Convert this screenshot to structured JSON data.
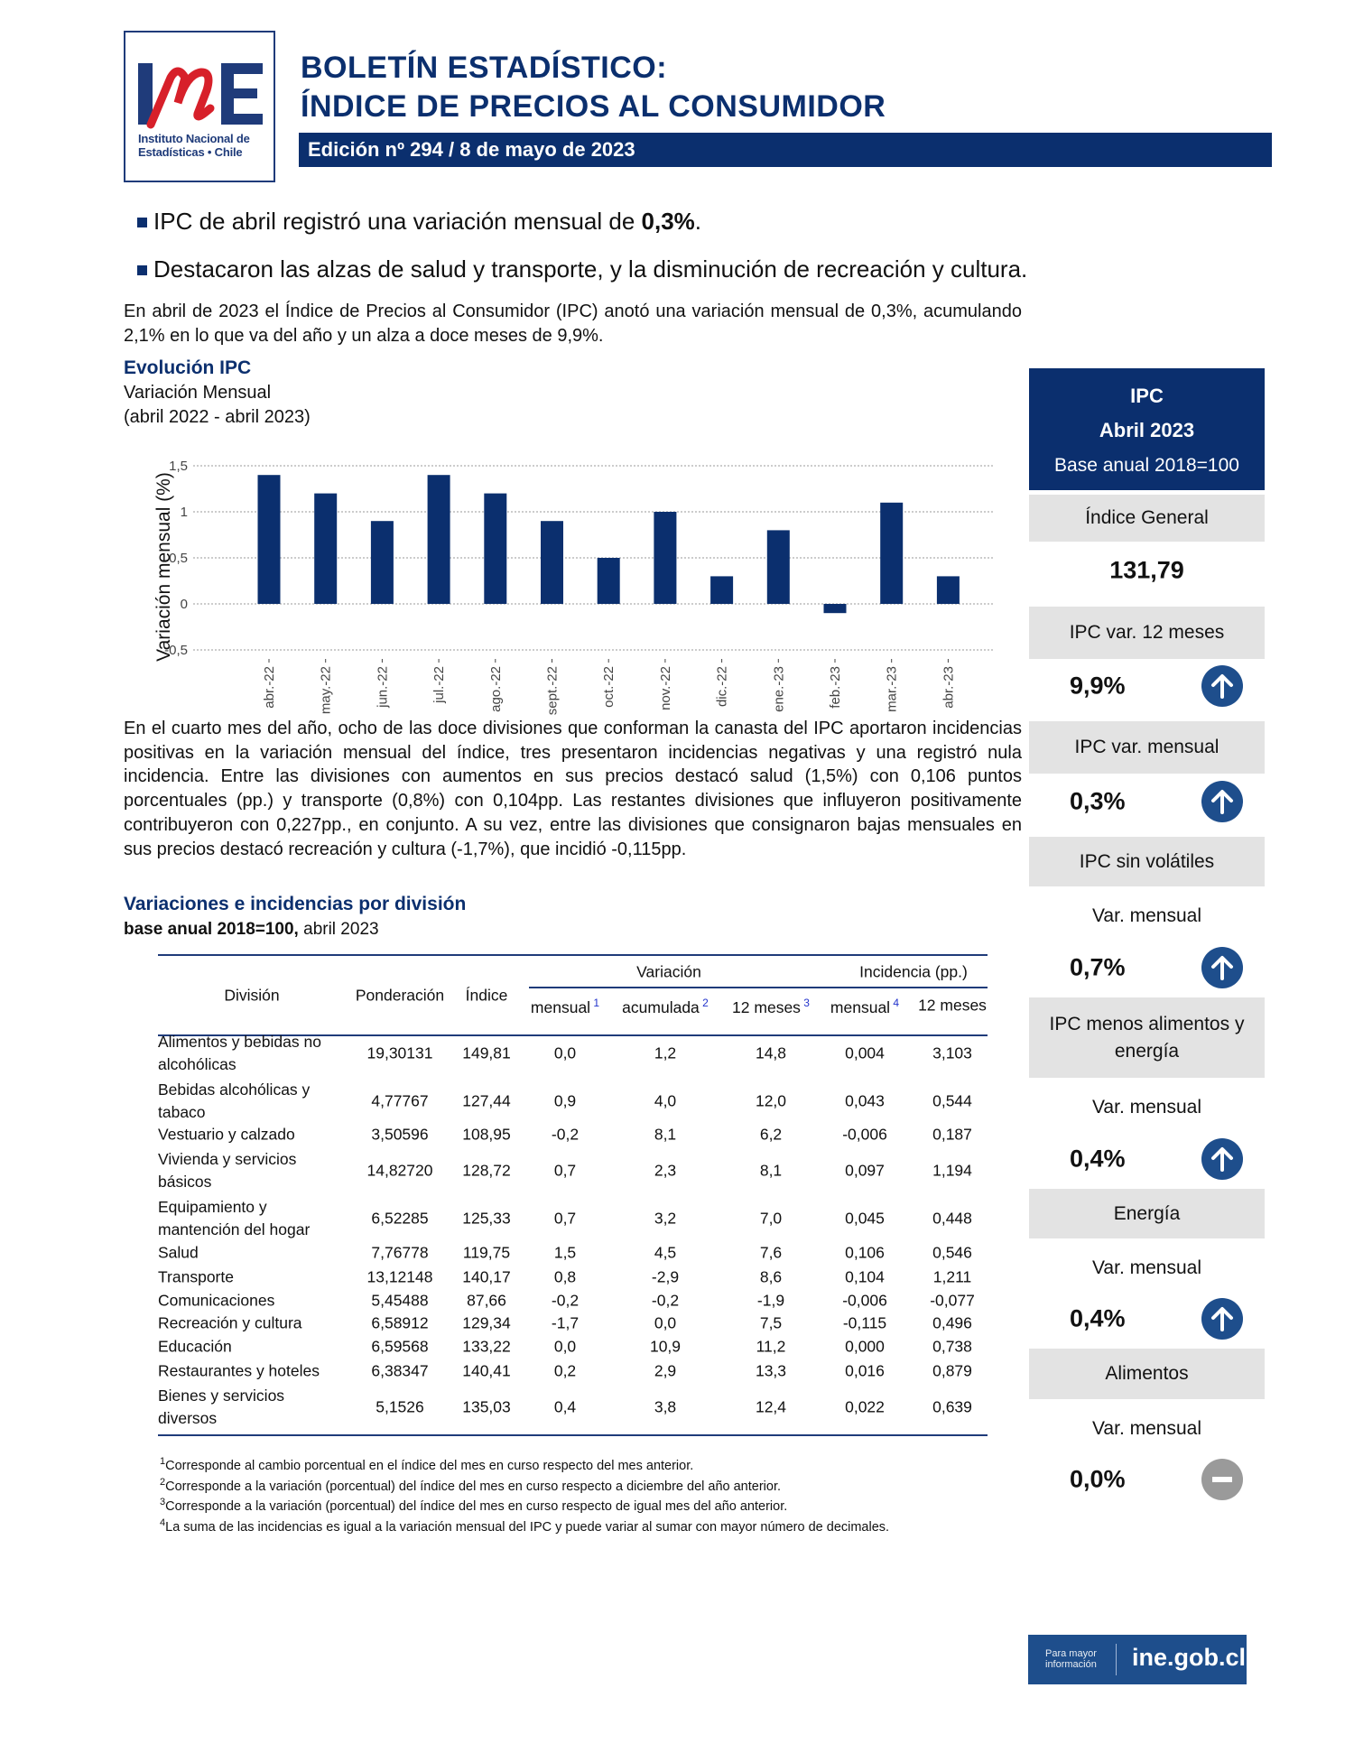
{
  "header": {
    "logo_text": "INE",
    "logo_caption_1": "Instituto Nacional de",
    "logo_caption_2": "Estadísticas • Chile",
    "title_line1": "BOLETÍN ESTADÍSTICO:",
    "title_line2": "ÍNDICE DE PRECIOS AL CONSUMIDOR",
    "edition": "Edición nº 294 / 8 de mayo de 2023"
  },
  "bullets": [
    {
      "text": "IPC de abril registró una variación mensual de ",
      "bold": "0,3%",
      "after": "."
    },
    {
      "text": "Destacaron las alzas de salud y transporte, y la disminución de recreación y cultura.",
      "bold": "",
      "after": ""
    }
  ],
  "intro": "En abril de 2023 el Índice de Precios al Consumidor (IPC) anotó una variación mensual de 0,3%, acumulando 2,1% en lo que va del año y un alza a doce meses de 9,9%.",
  "chart_section": {
    "title": "Evolución IPC",
    "subtitle1": "Variación Mensual",
    "subtitle2": "(abril 2022 - abril 2023)"
  },
  "chart_data": {
    "type": "bar",
    "ylabel": "Variación mensual (%)",
    "ylim": [
      -0.5,
      1.5
    ],
    "yticks": [
      "-0,5",
      "0",
      "0,5",
      "1",
      "1,5"
    ],
    "ytick_values": [
      -0.5,
      0,
      0.5,
      1,
      1.5
    ],
    "grid": true,
    "color": "#0b2f6e",
    "categories": [
      "abr.-22",
      "may.-22",
      "jun.-22",
      "jul.-22",
      "ago.-22",
      "sept.-22",
      "oct.-22",
      "nov.-22",
      "dic.-22",
      "ene.-23",
      "feb.-23",
      "mar.-23",
      "abr.-23"
    ],
    "values": [
      1.4,
      1.2,
      0.9,
      1.4,
      1.2,
      0.9,
      0.5,
      1.0,
      0.3,
      0.8,
      -0.1,
      1.1,
      0.3
    ]
  },
  "body": "En el cuarto mes del año, ocho de las doce divisiones que conforman la canasta del IPC aportaron incidencias positivas en la variación mensual del índice, tres presentaron incidencias negativas y una registró nula incidencia. Entre las divisiones con aumentos en sus precios destacó salud (1,5%) con 0,106 puntos porcentuales (pp.) y transporte (0,8%) con 0,104pp. Las restantes divisiones que influyeron positivamente contribuyeron con 0,227pp., en conjunto. A su vez, entre las divisiones que consignaron bajas mensuales en sus precios destacó recreación y cultura (-1,7%), que incidió -0,115pp.",
  "table_section": {
    "title": "Variaciones e incidencias por división",
    "subtitle_bold": "base anual 2018=100,",
    "subtitle_rest": " abril 2023"
  },
  "table": {
    "headers": {
      "division": "División",
      "ponderacion": "Ponderación",
      "indice": "Índice",
      "variacion": "Variación",
      "incidencia": "Incidencia (pp.)",
      "sub": [
        {
          "label": "mensual",
          "note": "1"
        },
        {
          "label": "acumulada",
          "note": "2"
        },
        {
          "label": "12 meses",
          "note": "3"
        },
        {
          "label": "mensual",
          "note": "4"
        },
        {
          "label": "12 meses",
          "note": ""
        }
      ]
    },
    "rows": [
      [
        "Alimentos y bebidas no alcohólicas",
        "19,30131",
        "149,81",
        "0,0",
        "1,2",
        "14,8",
        "0,004",
        "3,103"
      ],
      [
        "Bebidas alcohólicas y tabaco",
        "4,77767",
        "127,44",
        "0,9",
        "4,0",
        "12,0",
        "0,043",
        "0,544"
      ],
      [
        "Vestuario y calzado",
        "3,50596",
        "108,95",
        "-0,2",
        "8,1",
        "6,2",
        "-0,006",
        "0,187"
      ],
      [
        "Vivienda y servicios básicos",
        "14,82720",
        "128,72",
        "0,7",
        "2,3",
        "8,1",
        "0,097",
        "1,194"
      ],
      [
        "Equipamiento y mantención del hogar",
        "6,52285",
        "125,33",
        "0,7",
        "3,2",
        "7,0",
        "0,045",
        "0,448"
      ],
      [
        "Salud",
        "7,76778",
        "119,75",
        "1,5",
        "4,5",
        "7,6",
        "0,106",
        "0,546"
      ],
      [
        "Transporte",
        "13,12148",
        "140,17",
        "0,8",
        "-2,9",
        "8,6",
        "0,104",
        "1,211"
      ],
      [
        "Comunicaciones",
        "5,45488",
        "87,66",
        "-0,2",
        "-0,2",
        "-1,9",
        "-0,006",
        "-0,077"
      ],
      [
        "Recreación y cultura",
        "6,58912",
        "129,34",
        "-1,7",
        "0,0",
        "7,5",
        "-0,115",
        "0,496"
      ],
      [
        "Educación",
        "6,59568",
        "133,22",
        "0,0",
        "10,9",
        "11,2",
        "0,000",
        "0,738"
      ],
      [
        "Restaurantes y hoteles",
        "6,38347",
        "140,41",
        "0,2",
        "2,9",
        "13,3",
        "0,016",
        "0,879"
      ],
      [
        "Bienes y servicios diversos",
        "5,1526",
        "135,03",
        "0,4",
        "3,8",
        "12,4",
        "0,022",
        "0,639"
      ]
    ]
  },
  "footnotes": [
    {
      "n": "1",
      "text": "Corresponde al cambio porcentual en el índice del mes en curso respecto del mes anterior."
    },
    {
      "n": "2",
      "text": "Corresponde a la variación (porcentual) del índice del mes en curso respecto a diciembre del año anterior."
    },
    {
      "n": "3",
      "text": "Corresponde a la variación (porcentual) del índice del mes en curso respecto de igual mes del año anterior."
    },
    {
      "n": "4",
      "text": "La suma de las incidencias es igual a la variación mensual del IPC y puede variar al sumar con mayor número de decimales."
    }
  ],
  "panel": {
    "title": "IPC",
    "period": "Abril 2023",
    "base": "Base anual 2018=100",
    "indice_label": "Índice General",
    "indice_value": "131,79",
    "items": [
      {
        "label": "IPC var. 12 meses",
        "sublabel": "",
        "value": "9,9%",
        "trend": "up",
        "icon": "arrow-up-icon"
      },
      {
        "label": "IPC var. mensual",
        "sublabel": "",
        "value": "0,3%",
        "trend": "up",
        "icon": "arrow-up-icon"
      },
      {
        "label": "IPC sin volátiles",
        "sublabel": "Var. mensual",
        "value": "0,7%",
        "trend": "up",
        "icon": "arrow-up-icon"
      },
      {
        "label": "IPC menos alimentos y energía",
        "sublabel": "Var. mensual",
        "value": "0,4%",
        "trend": "up",
        "icon": "arrow-up-icon"
      },
      {
        "label": "Energía",
        "sublabel": "Var. mensual",
        "value": "0,4%",
        "trend": "up",
        "icon": "arrow-up-icon"
      },
      {
        "label": "Alimentos",
        "sublabel": "Var. mensual",
        "value": "0,0%",
        "trend": "flat",
        "icon": "minus-icon"
      }
    ],
    "colors": {
      "up": "#1e4e8c",
      "flat": "#9a9a9a",
      "header": "#0b2f6e",
      "label_bg": "#e3e3e3"
    }
  },
  "footer": {
    "more_info_1": "Para mayor",
    "more_info_2": "información",
    "site": "ine.gob.cl"
  }
}
